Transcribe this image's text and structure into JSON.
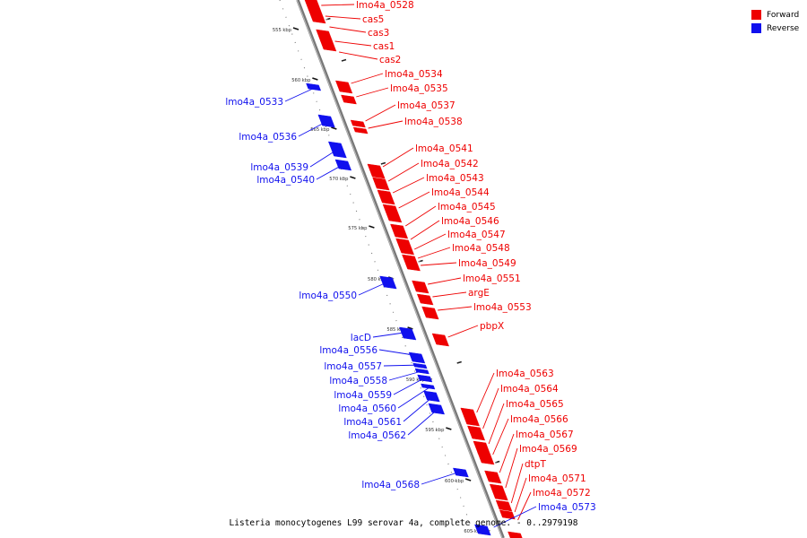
{
  "legend": {
    "forward_label": "Forward",
    "reverse_label": "Reverse",
    "forward_color": "#ee0000",
    "reverse_color": "#1010ee"
  },
  "caption": "Listeria monocytogenes L99 serovar 4a, complete genome. - 0..2979198",
  "axis_ticks": [
    "555 kbp",
    "560 kbp",
    "565 kbp",
    "570 kbp",
    "575 kbp",
    "580 kbp",
    "585 kbp",
    "590 kbp",
    "595 kbp",
    "600 kbp",
    "605 kbp"
  ],
  "forward_genes": [
    "lmo4a_0528",
    "cas5",
    "cas3",
    "cas1",
    "cas2",
    "lmo4a_0534",
    "lmo4a_0535",
    "lmo4a_0537",
    "lmo4a_0538",
    "lmo4a_0541",
    "lmo4a_0542",
    "lmo4a_0543",
    "lmo4a_0544",
    "lmo4a_0545",
    "lmo4a_0546",
    "lmo4a_0547",
    "lmo4a_0548",
    "lmo4a_0549",
    "lmo4a_0551",
    "argE",
    "lmo4a_0553",
    "pbpX",
    "lmo4a_0563",
    "lmo4a_0564",
    "lmo4a_0565",
    "lmo4a_0566",
    "lmo4a_0567",
    "lmo4a_0569",
    "dtpT",
    "lmo4a_0571",
    "lmo4a_0572"
  ],
  "reverse_genes": [
    "lmo4a_0533",
    "lmo4a_0536",
    "lmo4a_0539",
    "lmo4a_0540",
    "lmo4a_0550",
    "lacD",
    "lmo4a_0556",
    "lmo4a_0557",
    "lmo4a_0558",
    "lmo4a_0559",
    "lmo4a_0560",
    "lmo4a_0561",
    "lmo4a_0562",
    "lmo4a_0568",
    "lmo4a_0573"
  ]
}
